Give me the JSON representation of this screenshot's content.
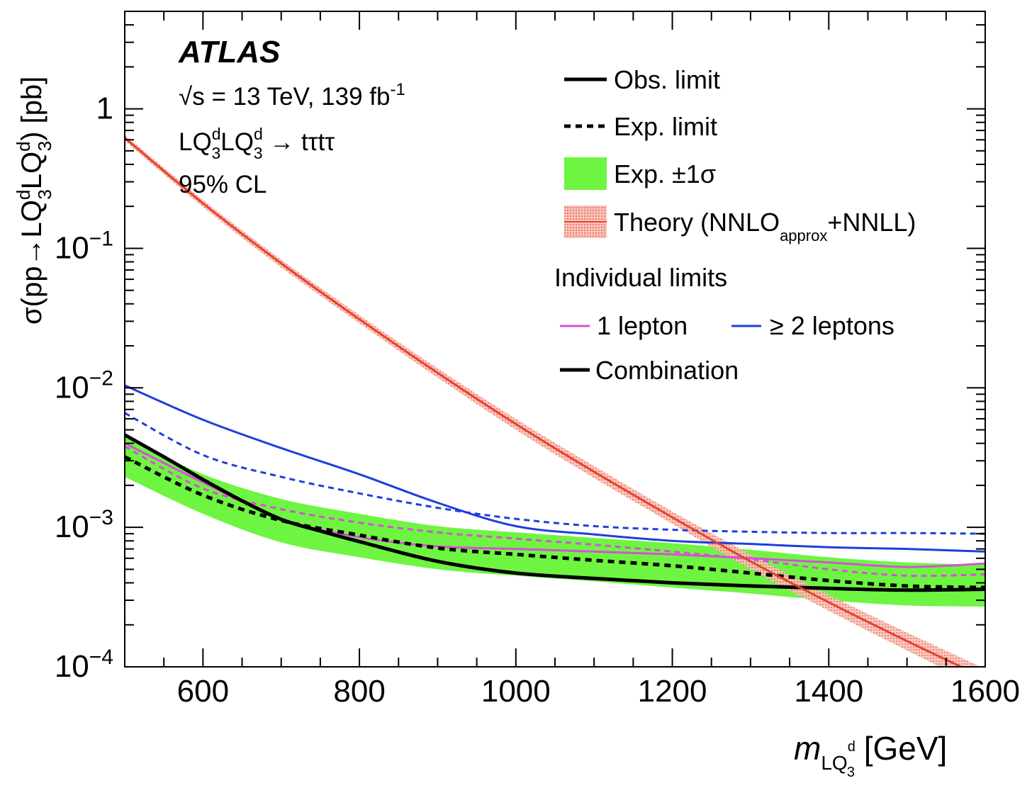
{
  "chart_data": {
    "type": "line",
    "title": "",
    "xlim": [
      500,
      1600
    ],
    "ylim": [
      0.0001,
      5
    ],
    "y_scale": "log",
    "grid": false,
    "legend_placement": "top-right",
    "ylabel": {
      "main": "σ(pp→LQ",
      "sup1": "d",
      "sub1": "3",
      "mid": "LQ",
      "sup2": "d",
      "sub2": "3",
      "end": ") [pb]"
    },
    "xlabel": {
      "main": "m",
      "sub": "LQ",
      "subsup": "d",
      "subsub": "3",
      "unit": " [GeV]"
    },
    "x_ticks": [
      "600",
      "800",
      "1000",
      "1200",
      "1400",
      "1600"
    ],
    "x_tick_values": [
      600,
      800,
      1000,
      1200,
      1400,
      1600
    ],
    "y_ticks": [
      {
        "value": 1,
        "base": "1",
        "exp": ""
      },
      {
        "value": 0.1,
        "base": "10",
        "exp": "−1"
      },
      {
        "value": 0.01,
        "base": "10",
        "exp": "−2"
      },
      {
        "value": 0.001,
        "base": "10",
        "exp": "−3"
      },
      {
        "value": 0.0001,
        "base": "10",
        "exp": "−4"
      }
    ],
    "annotations": {
      "experiment": "ATLAS",
      "energy_root": "√",
      "energy_text": "s = 13 TeV, 139 fb",
      "energy_sup": "-1",
      "process_a": "LQ",
      "process_sup": "d",
      "process_sub": "3",
      "process_arrow": " → tτtτ",
      "cl": "95% CL"
    },
    "legend": {
      "obs": "Obs. limit",
      "exp": "Exp. limit",
      "band": "Exp. ±1σ",
      "theory_a": "Theory (NNLO",
      "theory_sub": "approx",
      "theory_b": "+NNLL)",
      "individual_header": "Individual limits",
      "one_lepton": "1 lepton",
      "two_leptons": "≥ 2 leptons",
      "combination": "Combination"
    },
    "colors": {
      "band": "#6ef542",
      "theory": "#e8412c",
      "theory_band": "#f4a094",
      "one_lepton": "#d94fd9",
      "two_leptons": "#1f3fdb",
      "combination": "#000000"
    },
    "series": {
      "theory": {
        "x": [
          500,
          600,
          700,
          800,
          900,
          1000,
          1100,
          1200,
          1300,
          1400,
          1500,
          1600
        ],
        "y": [
          0.62,
          0.21,
          0.078,
          0.031,
          0.0128,
          0.0055,
          0.0025,
          0.00118,
          0.00057,
          0.00029,
          0.000153,
          8.3e-05
        ]
      },
      "theory_up": [
        0.65,
        0.222,
        0.083,
        0.0332,
        0.0138,
        0.006,
        0.00275,
        0.0013,
        0.00064,
        0.000328,
        0.000176,
        9.7e-05
      ],
      "theory_down": [
        0.59,
        0.198,
        0.073,
        0.029,
        0.0118,
        0.005,
        0.00225,
        0.00106,
        0.0005,
        0.000252,
        0.000131,
        6.9e-05
      ],
      "comb_obs": {
        "x": [
          500,
          550,
          600,
          650,
          700,
          750,
          800,
          900,
          1000,
          1100,
          1200,
          1300,
          1400,
          1500,
          1600
        ],
        "y": [
          0.0046,
          0.0032,
          0.0022,
          0.00155,
          0.00114,
          0.00094,
          0.00079,
          0.00057,
          0.00047,
          0.00043,
          0.0004,
          0.00038,
          0.000365,
          0.000355,
          0.00036
        ]
      },
      "comb_exp": {
        "x": [
          500,
          600,
          700,
          800,
          900,
          1000,
          1100,
          1200,
          1300,
          1400,
          1500,
          1600
        ],
        "y": [
          0.0032,
          0.0017,
          0.00112,
          0.00088,
          0.00071,
          0.00064,
          0.00058,
          0.00053,
          0.00047,
          0.000415,
          0.00038,
          0.00037
        ]
      },
      "band_up": [
        0.0045,
        0.0024,
        0.0016,
        0.00125,
        0.00102,
        0.00092,
        0.00084,
        0.00077,
        0.00069,
        0.00061,
        0.00056,
        0.00054
      ],
      "band_down": [
        0.0023,
        0.00125,
        0.00078,
        0.00061,
        0.0005,
        0.00045,
        0.00041,
        0.00037,
        0.000335,
        0.0003,
        0.000275,
        0.00027
      ],
      "one_lepton_obs": {
        "x": [
          500,
          600,
          700,
          800,
          900,
          1000,
          1100,
          1200,
          1300,
          1400,
          1500,
          1600
        ],
        "y": [
          0.004,
          0.0021,
          0.00115,
          0.00085,
          0.00073,
          0.0007,
          0.00067,
          0.00064,
          0.0006,
          0.00056,
          0.00052,
          0.00055
        ]
      },
      "one_lepton_exp": {
        "x": [
          500,
          600,
          700,
          800,
          900,
          1000,
          1100,
          1200,
          1300,
          1400,
          1500,
          1600
        ],
        "y": [
          0.0038,
          0.0019,
          0.00135,
          0.00108,
          0.00092,
          0.00083,
          0.00075,
          0.00067,
          0.00059,
          0.0005,
          0.00045,
          0.00046
        ]
      },
      "two_leptons_obs": {
        "x": [
          500,
          600,
          700,
          800,
          900,
          1000,
          1100,
          1200,
          1300,
          1400,
          1500,
          1600
        ],
        "y": [
          0.0104,
          0.0059,
          0.0037,
          0.0024,
          0.0015,
          0.00102,
          0.00089,
          0.0008,
          0.00076,
          0.00072,
          0.0007,
          0.00067
        ]
      },
      "two_leptons_exp": {
        "x": [
          500,
          600,
          700,
          800,
          900,
          1000,
          1100,
          1200,
          1300,
          1400,
          1500,
          1600
        ],
        "y": [
          0.0066,
          0.0033,
          0.0023,
          0.00175,
          0.00138,
          0.00115,
          0.00102,
          0.00096,
          0.00093,
          0.00091,
          0.00091,
          0.0009
        ]
      }
    }
  }
}
